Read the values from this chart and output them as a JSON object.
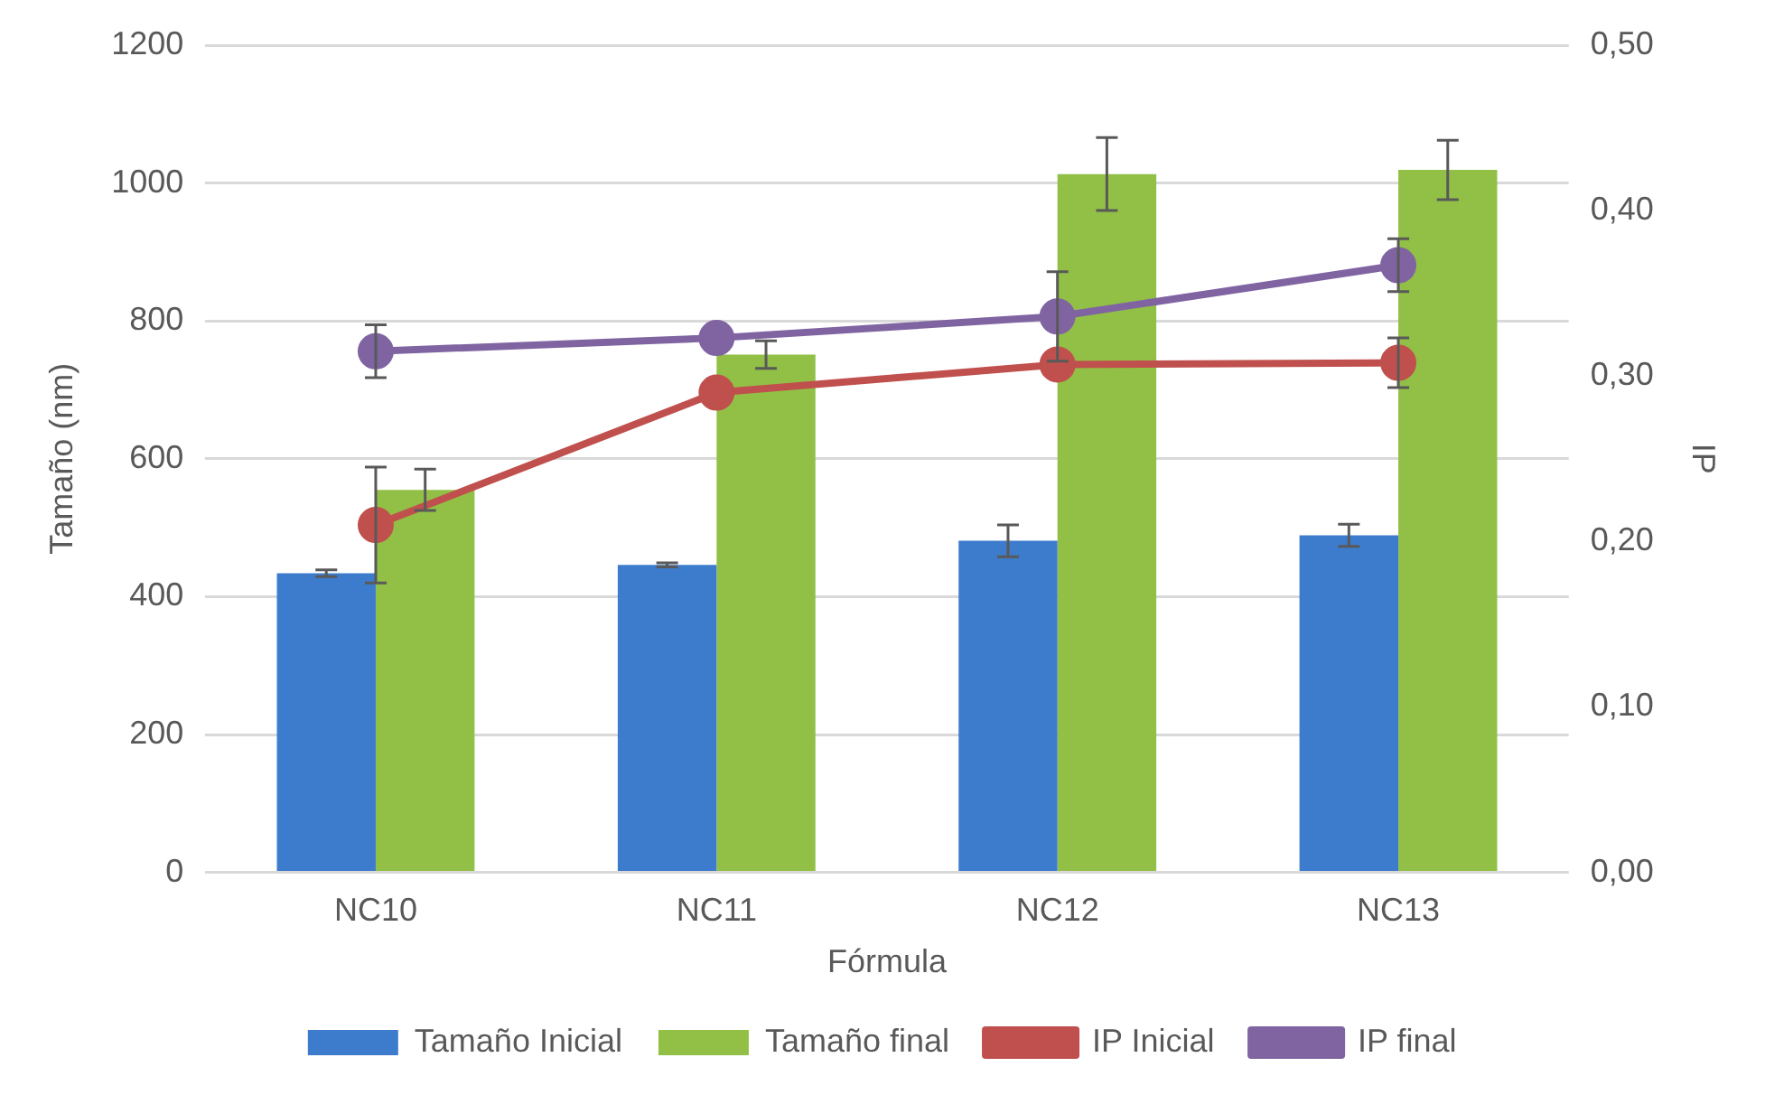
{
  "chart_data": {
    "type": "bar",
    "xlabel": "Fórmula",
    "ylabel": "Tamaño (nm)",
    "y2label": "IP",
    "categories": [
      "NC10",
      "NC11",
      "NC12",
      "NC13"
    ],
    "series": [
      {
        "name": "Tamaño Inicial",
        "color": "#3d7ccc",
        "values": [
          434,
          446,
          481,
          489
        ],
        "errors": [
          5,
          3,
          23,
          16
        ]
      },
      {
        "name": "Tamaño final",
        "color": "#92c046",
        "values": [
          555,
          751,
          1013,
          1019
        ],
        "errors": [
          30,
          20,
          53,
          43
        ]
      },
      {
        "name": "IP Inicial",
        "type": "line",
        "axis": "y2",
        "color": "#c0504d",
        "values": [
          0.21,
          0.29,
          0.307,
          0.308
        ],
        "errors": [
          0.035,
          null,
          null,
          0.015
        ]
      },
      {
        "name": "IP final",
        "type": "line",
        "axis": "y2",
        "color": "#8064a2",
        "values": [
          0.315,
          0.323,
          0.336,
          0.367
        ],
        "errors": [
          0.016,
          null,
          0.027,
          0.016
        ]
      }
    ],
    "ylim": [
      0,
      1200
    ],
    "yticks": [
      0,
      200,
      400,
      600,
      800,
      1000,
      1200
    ],
    "y2lim": [
      0,
      0.5
    ],
    "y2ticks": [
      {
        "value": 0,
        "label": "0,00"
      },
      {
        "value": 0.1,
        "label": "0,10"
      },
      {
        "value": 0.2,
        "label": "0,20"
      },
      {
        "value": 0.3,
        "label": "0,30"
      },
      {
        "value": 0.4,
        "label": "0,40"
      },
      {
        "value": 0.5,
        "label": "0,50"
      }
    ],
    "grid": "y",
    "legend": "bottom",
    "marker": "circle",
    "line_style": "solid"
  }
}
